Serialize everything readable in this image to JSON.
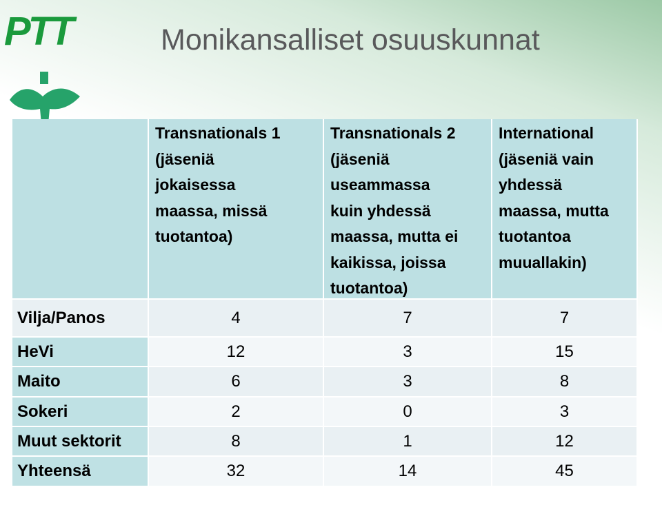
{
  "logo": {
    "text": "PTT"
  },
  "title": "Monikansalliset osuuskunnat",
  "table": {
    "header": [
      [],
      [
        "Transnationals 1",
        "(jäseniä",
        "jokaisessa",
        "maassa, missä",
        "tuotantoa)"
      ],
      [
        "Transnationals 2",
        "(jäseniä",
        "useammassa",
        "kuin yhdessä",
        "maassa, mutta ei",
        "kaikissa, joissa",
        "tuotantoa)"
      ],
      [
        "International",
        "(jäseniä vain",
        "yhdessä",
        "maassa, mutta",
        "tuotantoa",
        "muuallakin)"
      ]
    ],
    "rows": [
      [
        "Vilja/Panos",
        4,
        7,
        7
      ],
      [
        "HeVi",
        12,
        3,
        15
      ],
      [
        "Maito",
        6,
        3,
        8
      ],
      [
        "Sokeri",
        2,
        0,
        3
      ],
      [
        "Muut sektorit",
        8,
        1,
        12
      ],
      [
        "Yhteensä",
        32,
        14,
        45
      ]
    ]
  }
}
